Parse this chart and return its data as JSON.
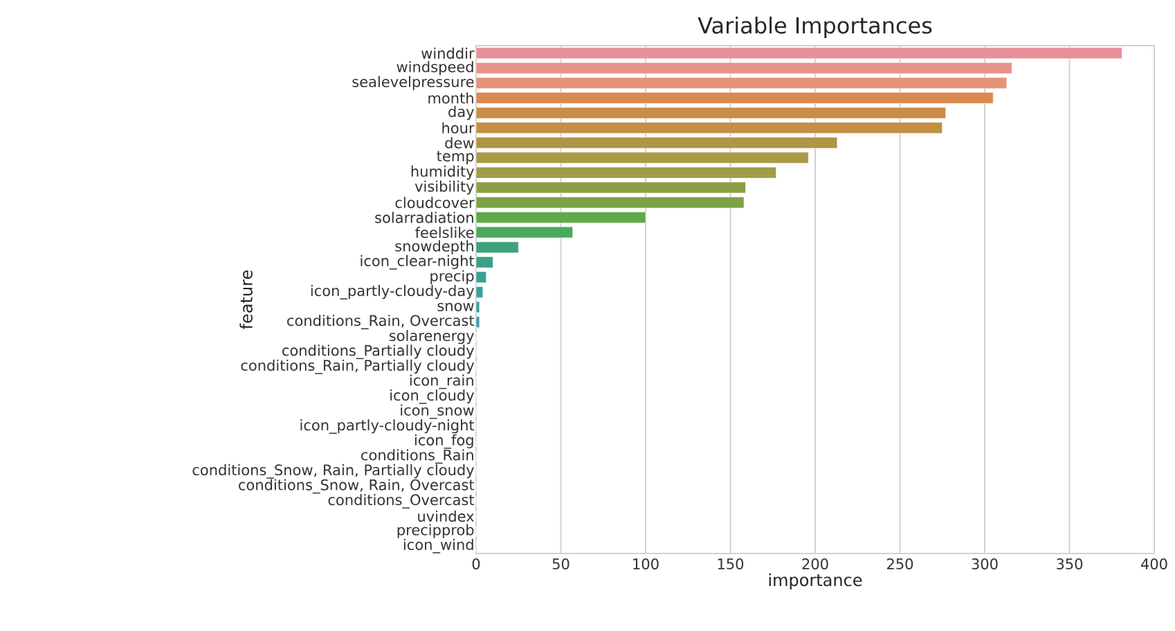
{
  "chart_data": {
    "type": "bar",
    "orientation": "horizontal",
    "title": "Variable Importances",
    "xlabel": "importance",
    "ylabel": "feature",
    "categories": [
      "winddir",
      "windspeed",
      "sealevelpressure",
      "month",
      "day",
      "hour",
      "dew",
      "temp",
      "humidity",
      "visibility",
      "cloudcover",
      "solarradiation",
      "feelslike",
      "snowdepth",
      "icon_clear-night",
      "precip",
      "icon_partly-cloudy-day",
      "snow",
      "conditions_Rain, Overcast",
      "solarenergy",
      "conditions_Partially cloudy",
      "conditions_Rain, Partially cloudy",
      "icon_rain",
      "icon_cloudy",
      "icon_snow",
      "icon_partly-cloudy-night",
      "icon_fog",
      "conditions_Rain",
      "conditions_Snow, Rain, Partially cloudy",
      "conditions_Snow, Rain, Overcast",
      "conditions_Overcast",
      "uvindex",
      "precipprob",
      "icon_wind"
    ],
    "values": [
      381,
      316,
      313,
      305,
      277,
      275,
      213,
      196,
      177,
      159,
      158,
      100,
      57,
      25,
      10,
      6,
      4,
      2,
      2,
      0,
      0,
      0,
      0,
      0,
      0,
      0,
      0,
      0,
      0,
      0,
      0,
      0,
      0,
      0
    ],
    "colors": [
      "#e8909a",
      "#e8918a",
      "#e5937a",
      "#d98a4e",
      "#c98d47",
      "#c29043",
      "#b09447",
      "#a99a48",
      "#a09d48",
      "#8f9e44",
      "#7fa146",
      "#62a84c",
      "#4aa85c",
      "#3ea27a",
      "#3aa08a",
      "#3aa093",
      "#3ba09b",
      "#3ca0a3",
      "#3da0a8",
      "#40a0b3",
      "#44a0bd",
      "#4c9fc8",
      "#5a9dd3",
      "#6f99dc",
      "#8793e0",
      "#9d8de0",
      "#b187dc",
      "#c282d2",
      "#d07fc4",
      "#dc84b4",
      "#e28aa6",
      "#e48aa0",
      "#e68c9c",
      "#e88e98"
    ],
    "xlim": [
      0,
      400
    ],
    "xticks": [
      0,
      50,
      100,
      150,
      200,
      250,
      300,
      350,
      400
    ],
    "grid": "x"
  }
}
